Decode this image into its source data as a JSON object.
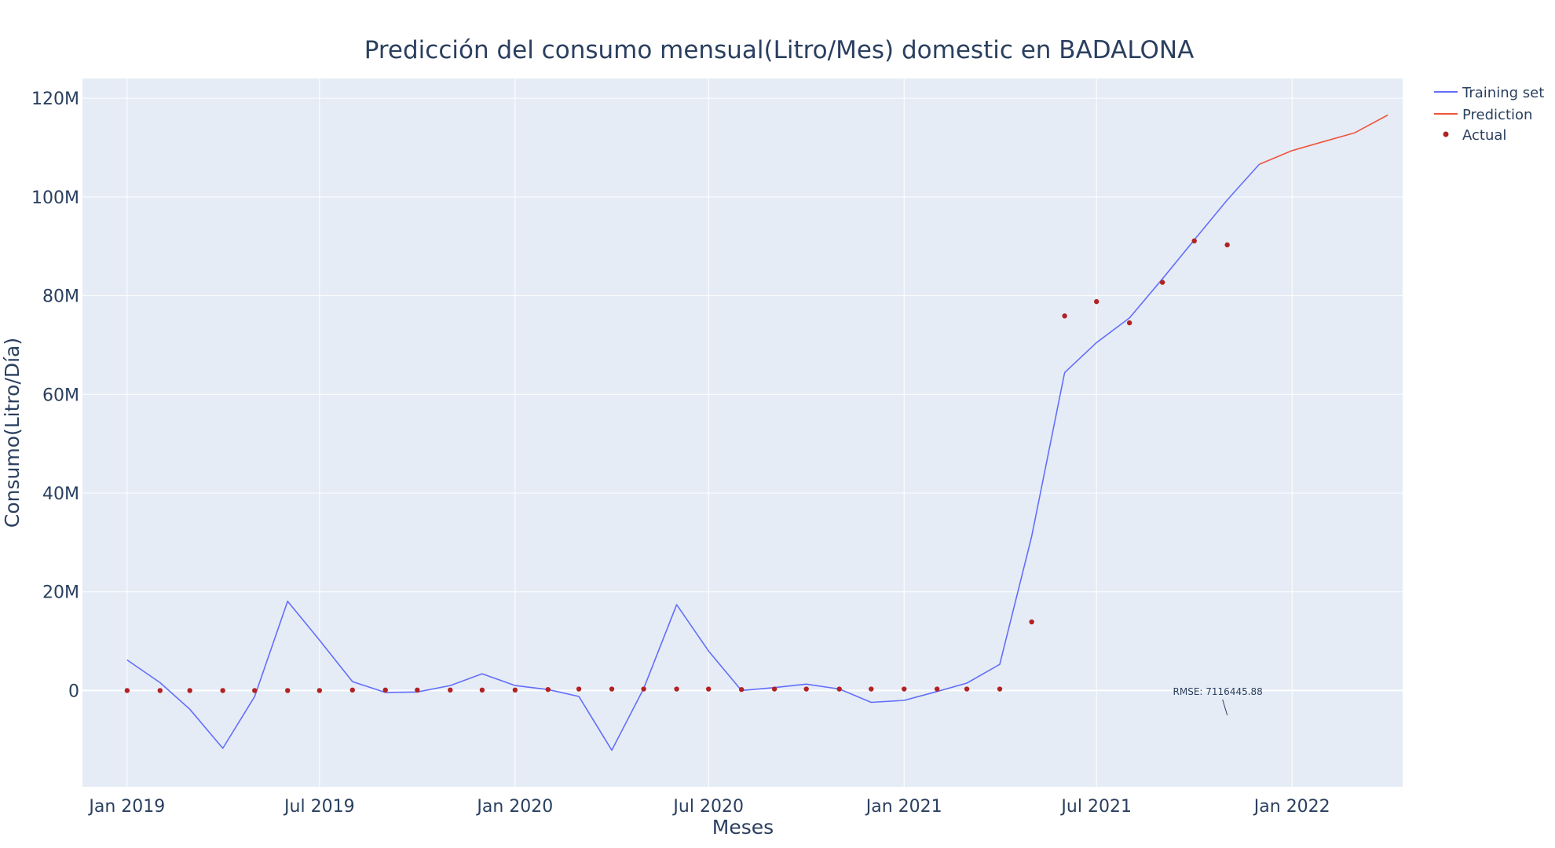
{
  "chart_data": {
    "type": "line",
    "title": "Predicción del consumo mensual(Litro/Mes) domestic en BADALONA",
    "xlabel": "Meses",
    "ylabel": "Consumo(Litro/Día)",
    "x_range": [
      "2018-11-20",
      "2022-04-15"
    ],
    "ylim": [
      -19500000,
      124000000
    ],
    "x_ticks": [
      {
        "date": "2019-01-01",
        "label": "Jan 2019"
      },
      {
        "date": "2019-07-01",
        "label": "Jul 2019"
      },
      {
        "date": "2020-01-01",
        "label": "Jan 2020"
      },
      {
        "date": "2020-07-01",
        "label": "Jul 2020"
      },
      {
        "date": "2021-01-01",
        "label": "Jan 2021"
      },
      {
        "date": "2021-07-01",
        "label": "Jul 2021"
      },
      {
        "date": "2022-01-01",
        "label": "Jan 2022"
      }
    ],
    "y_ticks": [
      {
        "value": 0,
        "label": "0"
      },
      {
        "value": 20000000,
        "label": "20M"
      },
      {
        "value": 40000000,
        "label": "40M"
      },
      {
        "value": 60000000,
        "label": "60M"
      },
      {
        "value": 80000000,
        "label": "80M"
      },
      {
        "value": 100000000,
        "label": "100M"
      },
      {
        "value": 120000000,
        "label": "120M"
      }
    ],
    "grid": true,
    "legend_position": "top-right",
    "series": [
      {
        "name": "Training set",
        "mode": "line",
        "color": "#636efa",
        "points": [
          {
            "x": "2019-01-01",
            "y": 6200000
          },
          {
            "x": "2019-02-01",
            "y": 1600000
          },
          {
            "x": "2019-03-01",
            "y": -3800000
          },
          {
            "x": "2019-04-01",
            "y": -11700000
          },
          {
            "x": "2019-05-01",
            "y": -1200000
          },
          {
            "x": "2019-06-01",
            "y": 18100000
          },
          {
            "x": "2019-07-01",
            "y": 10200000
          },
          {
            "x": "2019-08-01",
            "y": 1800000
          },
          {
            "x": "2019-09-01",
            "y": -400000
          },
          {
            "x": "2019-10-01",
            "y": -300000
          },
          {
            "x": "2019-11-01",
            "y": 1000000
          },
          {
            "x": "2019-12-01",
            "y": 3400000
          },
          {
            "x": "2020-01-01",
            "y": 1000000
          },
          {
            "x": "2020-02-01",
            "y": 200000
          },
          {
            "x": "2020-03-01",
            "y": -1200000
          },
          {
            "x": "2020-04-01",
            "y": -12100000
          },
          {
            "x": "2020-05-01",
            "y": 400000
          },
          {
            "x": "2020-06-01",
            "y": 17400000
          },
          {
            "x": "2020-07-01",
            "y": 8000000
          },
          {
            "x": "2020-08-01",
            "y": 0
          },
          {
            "x": "2020-09-01",
            "y": 600000
          },
          {
            "x": "2020-10-01",
            "y": 1300000
          },
          {
            "x": "2020-11-01",
            "y": 300000
          },
          {
            "x": "2020-12-01",
            "y": -2400000
          },
          {
            "x": "2021-01-01",
            "y": -2000000
          },
          {
            "x": "2021-02-01",
            "y": -200000
          },
          {
            "x": "2021-03-01",
            "y": 1500000
          },
          {
            "x": "2021-04-01",
            "y": 5300000
          },
          {
            "x": "2021-05-01",
            "y": 31200000
          },
          {
            "x": "2021-06-01",
            "y": 64400000
          },
          {
            "x": "2021-07-01",
            "y": 70500000
          },
          {
            "x": "2021-08-01",
            "y": 75500000
          },
          {
            "x": "2021-09-01",
            "y": 83400000
          },
          {
            "x": "2021-10-01",
            "y": 91300000
          },
          {
            "x": "2021-11-01",
            "y": 99400000
          },
          {
            "x": "2021-12-01",
            "y": 106600000
          }
        ]
      },
      {
        "name": "Prediction",
        "mode": "line",
        "color": "#ef553b",
        "points": [
          {
            "x": "2021-12-01",
            "y": 106600000
          },
          {
            "x": "2022-01-01",
            "y": 109400000
          },
          {
            "x": "2022-02-01",
            "y": 111300000
          },
          {
            "x": "2022-03-01",
            "y": 113000000
          },
          {
            "x": "2022-04-01",
            "y": 116600000
          }
        ]
      },
      {
        "name": "Actual",
        "mode": "markers",
        "color": "#b22222",
        "points": [
          {
            "x": "2019-01-01",
            "y": 0
          },
          {
            "x": "2019-02-01",
            "y": 0
          },
          {
            "x": "2019-03-01",
            "y": 0
          },
          {
            "x": "2019-04-01",
            "y": 0
          },
          {
            "x": "2019-05-01",
            "y": 0
          },
          {
            "x": "2019-06-01",
            "y": 0
          },
          {
            "x": "2019-07-01",
            "y": 0
          },
          {
            "x": "2019-08-01",
            "y": 100000
          },
          {
            "x": "2019-09-01",
            "y": 100000
          },
          {
            "x": "2019-10-01",
            "y": 100000
          },
          {
            "x": "2019-11-01",
            "y": 100000
          },
          {
            "x": "2019-12-01",
            "y": 100000
          },
          {
            "x": "2020-01-01",
            "y": 100000
          },
          {
            "x": "2020-02-01",
            "y": 200000
          },
          {
            "x": "2020-03-01",
            "y": 300000
          },
          {
            "x": "2020-04-01",
            "y": 300000
          },
          {
            "x": "2020-05-01",
            "y": 300000
          },
          {
            "x": "2020-06-01",
            "y": 300000
          },
          {
            "x": "2020-07-01",
            "y": 300000
          },
          {
            "x": "2020-08-01",
            "y": 200000
          },
          {
            "x": "2020-09-01",
            "y": 300000
          },
          {
            "x": "2020-10-01",
            "y": 300000
          },
          {
            "x": "2020-11-01",
            "y": 300000
          },
          {
            "x": "2020-12-01",
            "y": 300000
          },
          {
            "x": "2021-01-01",
            "y": 300000
          },
          {
            "x": "2021-02-01",
            "y": 300000
          },
          {
            "x": "2021-03-01",
            "y": 300000
          },
          {
            "x": "2021-04-01",
            "y": 300000
          },
          {
            "x": "2021-05-01",
            "y": 13900000
          },
          {
            "x": "2021-06-01",
            "y": 75900000
          },
          {
            "x": "2021-07-01",
            "y": 78800000
          },
          {
            "x": "2021-08-01",
            "y": 74500000
          },
          {
            "x": "2021-09-01",
            "y": 82700000
          },
          {
            "x": "2021-10-01",
            "y": 91100000
          },
          {
            "x": "2021-11-01",
            "y": 90300000
          }
        ]
      }
    ],
    "annotations": [
      {
        "text": "RMSE: 7116445.88",
        "x": "2021-11-01",
        "y": -5000000
      }
    ]
  },
  "colors": {
    "background": "#ffffff",
    "plot_background": "#e5ecf6",
    "grid": "#ffffff",
    "text": "#2a3f5f"
  }
}
